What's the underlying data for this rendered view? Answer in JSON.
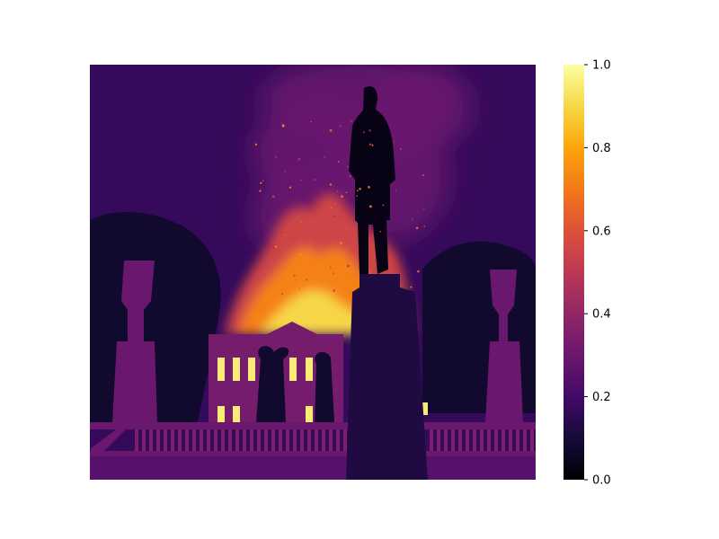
{
  "chart_data": {
    "type": "heatmap",
    "title": "",
    "xlabel": "",
    "ylabel": "",
    "colormap": "inferno",
    "colorbar": {
      "range": [
        0.0,
        1.0
      ],
      "ticks": [
        0.0,
        0.2,
        0.4,
        0.6,
        0.8,
        1.0
      ],
      "tick_labels": [
        "0.0",
        "0.2",
        "0.4",
        "0.6",
        "0.8",
        "1.0"
      ]
    },
    "axes_visible": false,
    "grid": false,
    "scene_intensity": {
      "sky_background": 0.17,
      "smoke": 0.3,
      "fire_core": 0.9,
      "fire_mid": 0.72,
      "fire_outer": 0.55,
      "lit_windows": 0.95,
      "building_facade": 0.33,
      "trees": 0.08,
      "statue_silhouette": 0.03,
      "pedestal": 0.12,
      "balustrade": 0.3,
      "ground_strip": 0.25
    }
  }
}
